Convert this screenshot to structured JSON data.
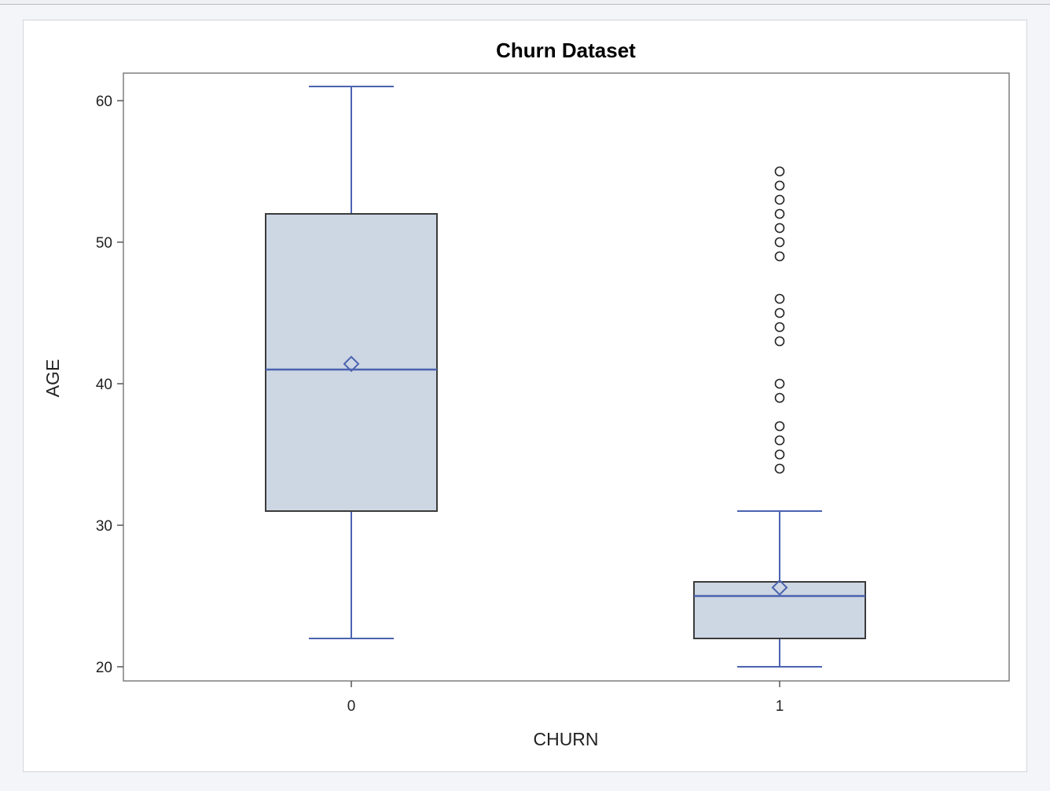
{
  "chart_data": {
    "type": "box",
    "title": "Churn Dataset",
    "xlabel": "CHURN",
    "ylabel": "AGE",
    "ylim": [
      19,
      62
    ],
    "yticks": [
      20,
      30,
      40,
      50,
      60
    ],
    "grid": false,
    "categories": [
      "0",
      "1"
    ],
    "boxes": [
      {
        "category": "0",
        "min": 22,
        "q1": 31,
        "median": 41,
        "q3": 52,
        "max": 61,
        "mean": 41.4,
        "outliers": []
      },
      {
        "category": "1",
        "min": 20,
        "q1": 22,
        "median": 25,
        "q3": 26,
        "max": 31,
        "mean": 25.6,
        "outliers": [
          34,
          35,
          36,
          37,
          39,
          40,
          43,
          44,
          45,
          46,
          49,
          50,
          51,
          52,
          53,
          54,
          55
        ]
      }
    ],
    "colors": {
      "box_fill": "#cdd6e3",
      "box_edge": "#3b3b3b",
      "whisker": "#4a63b0",
      "outlier": "#222222"
    }
  }
}
